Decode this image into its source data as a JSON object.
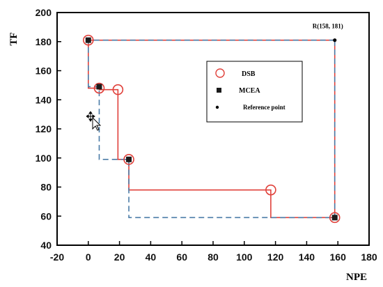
{
  "chart_data": {
    "type": "line",
    "title": "",
    "xlabel": "NPE",
    "ylabel": "TF",
    "xlim": [
      -20,
      180
    ],
    "ylim": [
      40,
      200
    ],
    "xticks": [
      -20,
      0,
      20,
      40,
      60,
      80,
      100,
      120,
      140,
      160,
      180
    ],
    "yticks": [
      40,
      60,
      80,
      100,
      120,
      140,
      160,
      180,
      200
    ],
    "grid": false,
    "legend_position": "upper-right",
    "series": [
      {
        "name": "DSB",
        "color": "#e0403a",
        "line_style": "solid",
        "marker": "open-circle",
        "points": [
          [
            0,
            181
          ],
          [
            7,
            148
          ],
          [
            19,
            147
          ],
          [
            26,
            99
          ],
          [
            117,
            78
          ],
          [
            158,
            59
          ]
        ]
      },
      {
        "name": "MCEA",
        "color": "#1b1b1b",
        "line_color": "#4a7ba7",
        "line_style": "dashed",
        "marker": "filled-square",
        "points": [
          [
            0,
            181
          ],
          [
            7,
            149
          ],
          [
            26,
            99
          ],
          [
            158,
            59
          ]
        ]
      },
      {
        "name": "Reference point",
        "color": "#000000",
        "marker": "filled-dot",
        "points": [
          [
            158,
            181
          ]
        ]
      }
    ],
    "annotations": [
      {
        "text": "R(158, 181)",
        "x": 158,
        "y": 181
      }
    ]
  },
  "cursor": {
    "icon": "move-cursor-icon"
  }
}
